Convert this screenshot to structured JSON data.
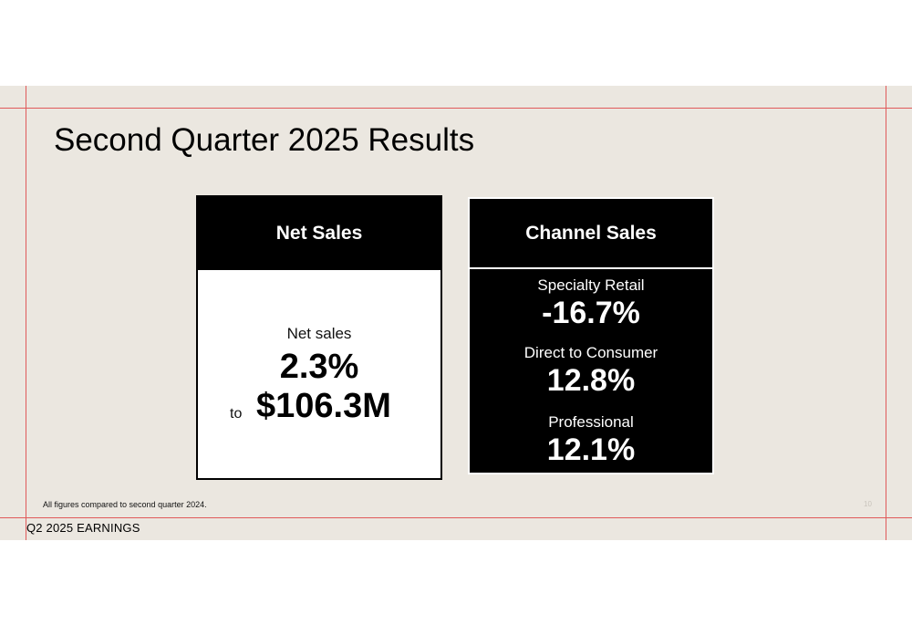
{
  "title": "Second Quarter 2025 Results",
  "net_sales_card": {
    "heading": "Net Sales",
    "label": "Net sales",
    "percent": "2.3%",
    "to": "to",
    "amount": "$106.3M"
  },
  "channel_card": {
    "heading": "Channel Sales",
    "channels": [
      {
        "label": "Specialty Retail",
        "value": "-16.7%"
      },
      {
        "label": "Direct to Consumer",
        "value": "12.8%"
      },
      {
        "label": "Professional",
        "value": "12.1%"
      }
    ]
  },
  "footnote": "All figures compared to second quarter 2024.",
  "page_number": "10",
  "footer": "Q2 2025 EARNINGS",
  "colors": {
    "slide_bg": "#ebe7e0",
    "guide_lines": "#e05a5a",
    "card_dark": "#000000",
    "card_light": "#ffffff"
  }
}
